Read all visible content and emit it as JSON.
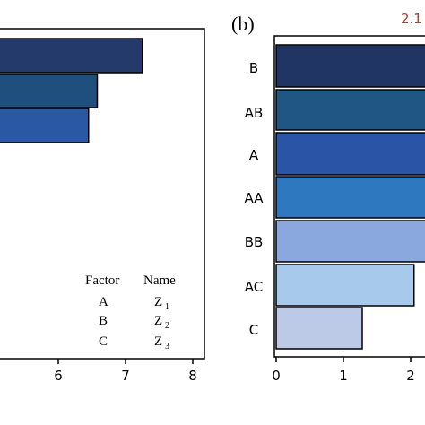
{
  "chart_data": [
    {
      "type": "bar",
      "orientation": "horizontal",
      "panel_label": "",
      "categories": [
        "",
        "",
        ""
      ],
      "values": [
        7.25,
        6.58,
        6.45
      ],
      "colors": [
        "#233a6b",
        "#1f4f7d",
        "#2a58a3"
      ],
      "xlim": [
        4.9,
        8.2
      ],
      "xticks": [
        6,
        7,
        8
      ],
      "legend_table": {
        "header": [
          "Factor",
          "Name"
        ],
        "rows": [
          [
            "A",
            "Z",
            "1"
          ],
          [
            "B",
            "Z",
            "2"
          ],
          [
            "C",
            "Z",
            "3"
          ]
        ]
      },
      "grid": false
    },
    {
      "type": "bar",
      "orientation": "horizontal",
      "panel_label": "(b)",
      "annotation": "2.1",
      "annotation_color": "#c0392b",
      "categories": [
        "B",
        "AB",
        "A",
        "AA",
        "BB",
        "AC",
        "C"
      ],
      "values": [
        2.35,
        2.35,
        2.35,
        2.35,
        2.35,
        2.05,
        1.28
      ],
      "colors": [
        "#213565",
        "#1f5683",
        "#2a54a5",
        "#2e78c0",
        "#8aa8dd",
        "#a7c9ec",
        "#bccae8"
      ],
      "xlim": [
        0,
        2.2
      ],
      "xticks": [
        0,
        1,
        2
      ],
      "grid": false
    }
  ]
}
